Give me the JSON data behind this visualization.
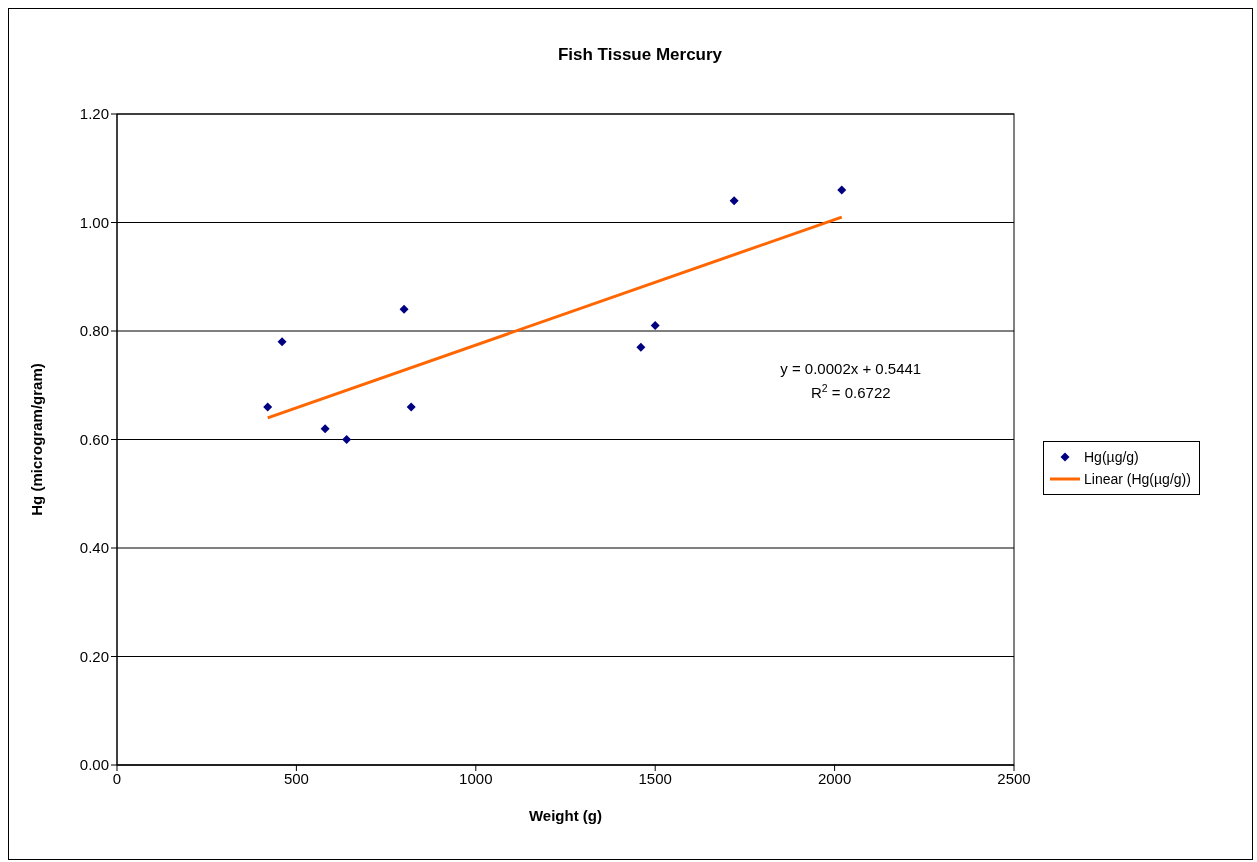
{
  "chart_data": {
    "type": "scatter",
    "title": "Fish Tissue Mercury",
    "xlabel": "Weight (g)",
    "ylabel": "Hg (microgram/gram)",
    "series": [
      {
        "name": "Hg(µg/g)",
        "color": "#000080",
        "marker": "diamond",
        "x": [
          420,
          460,
          580,
          640,
          800,
          820,
          1460,
          1500,
          1720,
          2020
        ],
        "values": [
          0.66,
          0.78,
          0.62,
          0.6,
          0.84,
          0.66,
          0.77,
          0.81,
          1.04,
          1.06
        ]
      },
      {
        "name": "Linear (Hg(µg/g))",
        "type": "line",
        "color": "#ff6600",
        "marker": "none",
        "x": [
          420,
          2020
        ],
        "values": [
          0.64,
          1.01
        ]
      }
    ],
    "xlim": [
      0,
      2500
    ],
    "xticks": [
      0,
      500,
      1000,
      1500,
      2000,
      2500
    ],
    "ylim": [
      0,
      1.2
    ],
    "yticks": [
      {
        "value": 0,
        "label": "0.00"
      },
      {
        "value": 0.2,
        "label": "0.20"
      },
      {
        "value": 0.4,
        "label": "0.40"
      },
      {
        "value": 0.6,
        "label": "0.60"
      },
      {
        "value": 0.8,
        "label": "0.80"
      },
      {
        "value": 1,
        "label": "1.00"
      },
      {
        "value": 1.2,
        "label": "1.20"
      }
    ],
    "grid": "y",
    "legend": "right",
    "annotations": [
      "y = 0.0002x + 0.5441",
      "R$^{2}$ = 0.6722"
    ]
  }
}
